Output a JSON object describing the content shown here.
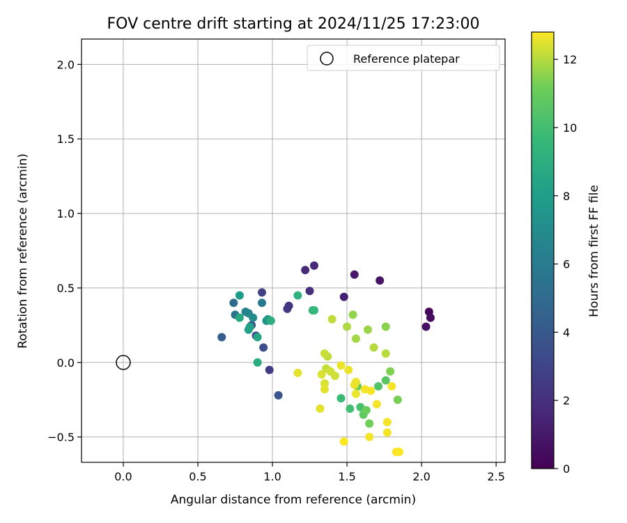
{
  "chart_data": {
    "type": "scatter",
    "title": "FOV centre drift starting at 2024/11/25 17:23:00",
    "xlabel": "Angular distance from reference (arcmin)",
    "ylabel": "Rotation from reference (arcmin)",
    "xlim": [
      -0.28,
      2.56
    ],
    "ylim": [
      -0.67,
      2.17
    ],
    "xticks": [
      0.0,
      0.5,
      1.0,
      1.5,
      2.0,
      2.5
    ],
    "xtick_labels": [
      "0.0",
      "0.5",
      "1.0",
      "1.5",
      "2.0",
      "2.5"
    ],
    "yticks": [
      -0.5,
      0.0,
      0.5,
      1.0,
      1.5,
      2.0
    ],
    "ytick_labels": [
      "−0.5",
      "0.0",
      "0.5",
      "1.0",
      "1.5",
      "2.0"
    ],
    "grid": true,
    "legend": {
      "placement": "top-right",
      "entries": [
        "Reference platepar"
      ]
    },
    "reference_point": {
      "x": 0.0,
      "y": 0.0,
      "label": "Reference platepar",
      "marker": "open-circle",
      "color": "#000000"
    },
    "colorbar": {
      "label": "Hours from first FF file",
      "range": [
        0,
        12.8
      ],
      "ticks": [
        0,
        2,
        4,
        6,
        8,
        10,
        12
      ],
      "tick_labels": [
        "0",
        "2",
        "4",
        "6",
        "8",
        "10",
        "12"
      ],
      "colormap": "viridis"
    },
    "series": [
      {
        "marker": "filled-circle",
        "points": [
          [
            2.05,
            0.34,
            0.2
          ],
          [
            2.06,
            0.3,
            0.4
          ],
          [
            2.03,
            0.24,
            0.6
          ],
          [
            1.72,
            0.55,
            0.8
          ],
          [
            1.55,
            0.59,
            1.0
          ],
          [
            1.48,
            0.44,
            1.3
          ],
          [
            1.28,
            0.65,
            1.6
          ],
          [
            1.22,
            0.62,
            1.8
          ],
          [
            1.25,
            0.48,
            2.0
          ],
          [
            1.11,
            0.38,
            2.2
          ],
          [
            1.1,
            0.36,
            2.4
          ],
          [
            0.98,
            -0.05,
            2.6
          ],
          [
            0.93,
            0.47,
            2.8
          ],
          [
            0.86,
            0.25,
            3.0
          ],
          [
            0.89,
            0.18,
            3.2
          ],
          [
            0.94,
            0.1,
            3.5
          ],
          [
            1.04,
            -0.22,
            3.8
          ],
          [
            0.66,
            0.17,
            4.3
          ],
          [
            0.74,
            0.4,
            5.0
          ],
          [
            0.75,
            0.32,
            5.5
          ],
          [
            0.93,
            0.4,
            5.9
          ],
          [
            0.82,
            0.34,
            6.3
          ],
          [
            0.84,
            0.33,
            6.6
          ],
          [
            0.87,
            0.3,
            7.0
          ],
          [
            0.96,
            0.28,
            7.3
          ],
          [
            0.97,
            0.29,
            7.6
          ],
          [
            0.78,
            0.45,
            7.9
          ],
          [
            0.84,
            0.22,
            8.1
          ],
          [
            0.85,
            0.24,
            8.3
          ],
          [
            0.9,
            0.17,
            8.5
          ],
          [
            0.78,
            0.3,
            8.7
          ],
          [
            0.9,
            0.0,
            8.8
          ],
          [
            0.99,
            0.28,
            9.0
          ],
          [
            1.17,
            0.45,
            9.2
          ],
          [
            1.27,
            0.35,
            9.4
          ],
          [
            1.28,
            0.35,
            9.6
          ],
          [
            1.46,
            -0.24,
            9.8
          ],
          [
            1.52,
            -0.31,
            10.0
          ],
          [
            1.59,
            -0.3,
            10.2
          ],
          [
            1.71,
            -0.16,
            10.4
          ],
          [
            1.76,
            -0.12,
            10.6
          ],
          [
            1.61,
            -0.35,
            10.8
          ],
          [
            1.57,
            -0.16,
            11.0
          ],
          [
            1.63,
            -0.32,
            11.1
          ],
          [
            1.65,
            -0.41,
            11.2
          ],
          [
            1.84,
            -0.25,
            11.3
          ],
          [
            1.79,
            -0.06,
            11.4
          ],
          [
            1.76,
            0.24,
            11.5
          ],
          [
            1.54,
            0.32,
            11.6
          ],
          [
            1.64,
            0.22,
            11.7
          ],
          [
            1.56,
            0.16,
            11.8
          ],
          [
            1.5,
            0.24,
            11.9
          ],
          [
            1.76,
            0.06,
            12.0
          ],
          [
            1.68,
            0.1,
            12.0
          ],
          [
            1.4,
            0.29,
            12.1
          ],
          [
            1.37,
            0.04,
            12.1
          ],
          [
            1.35,
            0.06,
            12.2
          ],
          [
            1.36,
            -0.04,
            12.2
          ],
          [
            1.42,
            -0.09,
            12.3
          ],
          [
            1.39,
            -0.06,
            12.3
          ],
          [
            1.33,
            -0.08,
            12.4
          ],
          [
            1.35,
            -0.14,
            12.4
          ],
          [
            1.35,
            -0.18,
            12.5
          ],
          [
            1.17,
            -0.07,
            12.5
          ],
          [
            1.32,
            -0.31,
            12.5
          ],
          [
            1.46,
            -0.02,
            12.6
          ],
          [
            1.51,
            -0.05,
            12.6
          ],
          [
            1.55,
            -0.15,
            12.6
          ],
          [
            1.56,
            -0.13,
            12.6
          ],
          [
            1.56,
            -0.21,
            12.6
          ],
          [
            1.62,
            -0.18,
            12.7
          ],
          [
            1.66,
            -0.19,
            12.7
          ],
          [
            1.7,
            -0.28,
            12.7
          ],
          [
            1.8,
            -0.16,
            12.7
          ],
          [
            1.77,
            -0.4,
            12.7
          ],
          [
            1.77,
            -0.47,
            12.7
          ],
          [
            1.65,
            -0.5,
            12.7
          ],
          [
            1.48,
            -0.53,
            12.8
          ],
          [
            1.83,
            -0.6,
            12.8
          ],
          [
            1.85,
            -0.6,
            12.8
          ]
        ]
      }
    ]
  }
}
